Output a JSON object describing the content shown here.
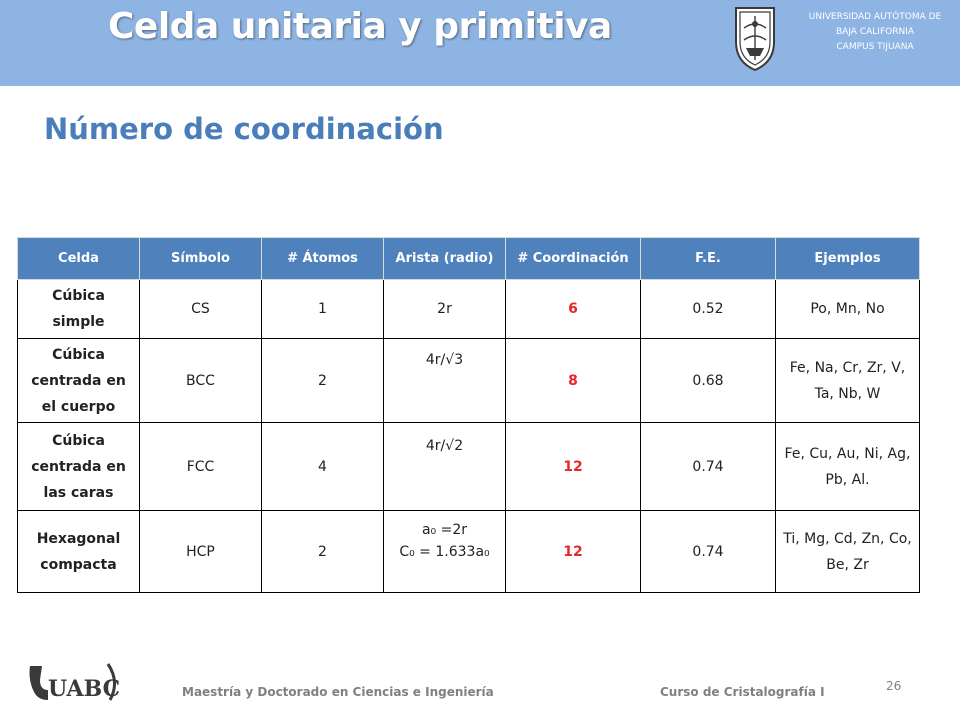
{
  "header": {
    "title": "Celda unitaria y primitiva",
    "university_line1": "UNIVERSIDAD AUTÓTOMA DE",
    "university_line2": "BAJA CALIFORNIA",
    "university_line3": "CAMPUS TIJUANA"
  },
  "slide": {
    "subtitle": "Número de coordinación"
  },
  "table": {
    "headers": [
      "Celda",
      "Símbolo",
      "# Átomos",
      "Arista (radio)",
      "# Coordinación",
      "F.E.",
      "Ejemplos"
    ],
    "rows": [
      {
        "celda_line1": "Cúbica",
        "celda_line2": "simple",
        "celda_line3": "",
        "simbolo": "CS",
        "atomos": "1",
        "arista_line1": "2r",
        "arista_line2": "",
        "coordinacion": "6",
        "fe": "0.52",
        "ejemplos": "Po, Mn, No"
      },
      {
        "celda_line1": "Cúbica",
        "celda_line2": "centrada en",
        "celda_line3": "el cuerpo",
        "simbolo": "BCC",
        "atomos": "2",
        "arista_line1": "4r/√3",
        "arista_line2": "",
        "coordinacion": "8",
        "fe": "0.68",
        "ejemplos": "Fe, Na, Cr, Zr, V, Ta, Nb, W"
      },
      {
        "celda_line1": "Cúbica",
        "celda_line2": "centrada en",
        "celda_line3": "las caras",
        "simbolo": "FCC",
        "atomos": "4",
        "arista_line1": "4r/√2",
        "arista_line2": "",
        "coordinacion": "12",
        "fe": "0.74",
        "ejemplos": "Fe, Cu, Au, Ni, Ag, Pb, Al."
      },
      {
        "celda_line1": "Hexagonal",
        "celda_line2": "compacta",
        "celda_line3": "",
        "simbolo": "HCP",
        "atomos": "2",
        "arista_line1": "a₀ =2r",
        "arista_line2": "C₀ = 1.633a₀",
        "coordinacion": "12",
        "fe": "0.74",
        "ejemplos": "Ti, Mg, Cd, Zn, Co, Be, Zr"
      }
    ]
  },
  "footer": {
    "logo_text": "UABC",
    "left_text": "Maestría y Doctorado en Ciencias e Ingeniería",
    "right_text": "Curso de Cristalografía I",
    "page_number": "26"
  },
  "colors": {
    "header_bg": "#8eb4e3",
    "subtitle": "#4a7ebb",
    "table_header_bg": "#4f81bd",
    "coordination_value": "#e8262a"
  }
}
